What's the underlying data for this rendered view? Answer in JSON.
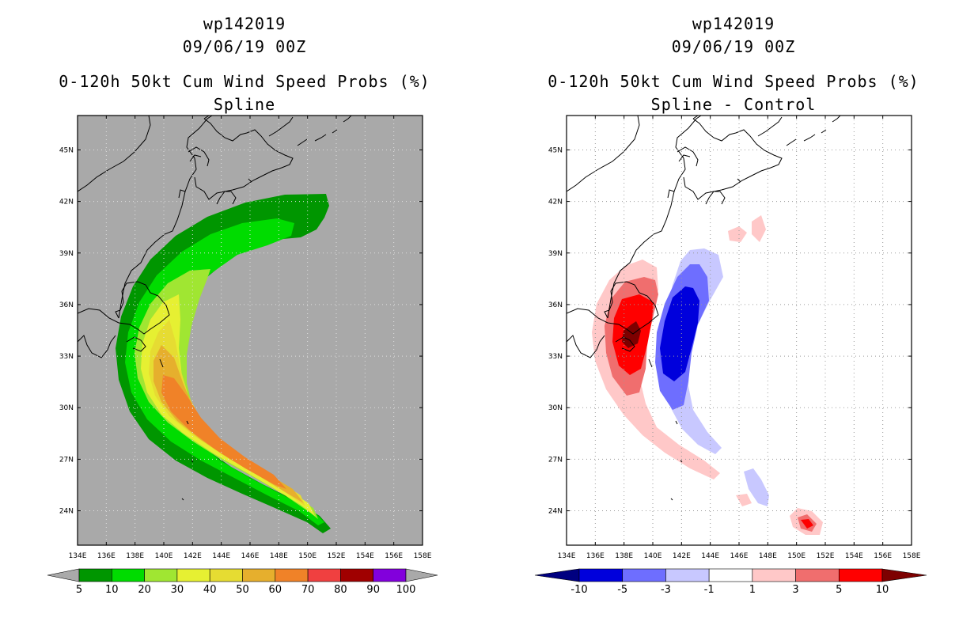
{
  "chart_data": [
    {
      "type": "heatmap",
      "storm_id": "wp142019",
      "datetime": "09/06/19 00Z",
      "title": "0-120h 50kt Cum Wind Speed Probs (%)",
      "subtitle": "Spline",
      "xlabel": "",
      "ylabel": "",
      "xlim": [
        134,
        158
      ],
      "ylim": [
        22,
        47
      ],
      "grid": true,
      "background_color": "#a9a9a9",
      "x_ticks": [
        "134E",
        "136E",
        "138E",
        "140E",
        "142E",
        "144E",
        "146E",
        "148E",
        "150E",
        "152E",
        "154E",
        "156E",
        "158E"
      ],
      "y_ticks": [
        "24N",
        "27N",
        "30N",
        "33N",
        "36N",
        "39N",
        "42N",
        "45N"
      ],
      "colorbar": {
        "labels": [
          "5",
          "10",
          "20",
          "30",
          "40",
          "50",
          "60",
          "70",
          "80",
          "90",
          "100"
        ],
        "colors": [
          "#009600",
          "#00dc00",
          "#a0e632",
          "#e6f032",
          "#e6dc32",
          "#e6af2d",
          "#f08228",
          "#f04040",
          "#a00000",
          "#8200dc"
        ],
        "extend_colors": [
          "#a9a9a9",
          "#a9a9a9"
        ]
      }
    },
    {
      "type": "heatmap",
      "storm_id": "wp142019",
      "datetime": "09/06/19 00Z",
      "title": "0-120h 50kt Cum Wind Speed Probs (%)",
      "subtitle": "Spline - Control",
      "xlabel": "",
      "ylabel": "",
      "xlim": [
        134,
        158
      ],
      "ylim": [
        22,
        47
      ],
      "grid": true,
      "background_color": "#ffffff",
      "x_ticks": [
        "134E",
        "136E",
        "138E",
        "140E",
        "142E",
        "144E",
        "146E",
        "148E",
        "150E",
        "152E",
        "154E",
        "156E",
        "158E"
      ],
      "y_ticks": [
        "24N",
        "27N",
        "30N",
        "33N",
        "36N",
        "39N",
        "42N",
        "45N"
      ],
      "colorbar": {
        "labels": [
          "-10",
          "-5",
          "-3",
          "-1",
          "1",
          "3",
          "5",
          "10"
        ],
        "colors": [
          "#0000dc",
          "#6e6eff",
          "#c8c8ff",
          "#ffffff",
          "#ffc8c8",
          "#f06e6e",
          "#ff0000"
        ],
        "extend_colors": [
          "#000080",
          "#7d0000"
        ]
      }
    }
  ]
}
